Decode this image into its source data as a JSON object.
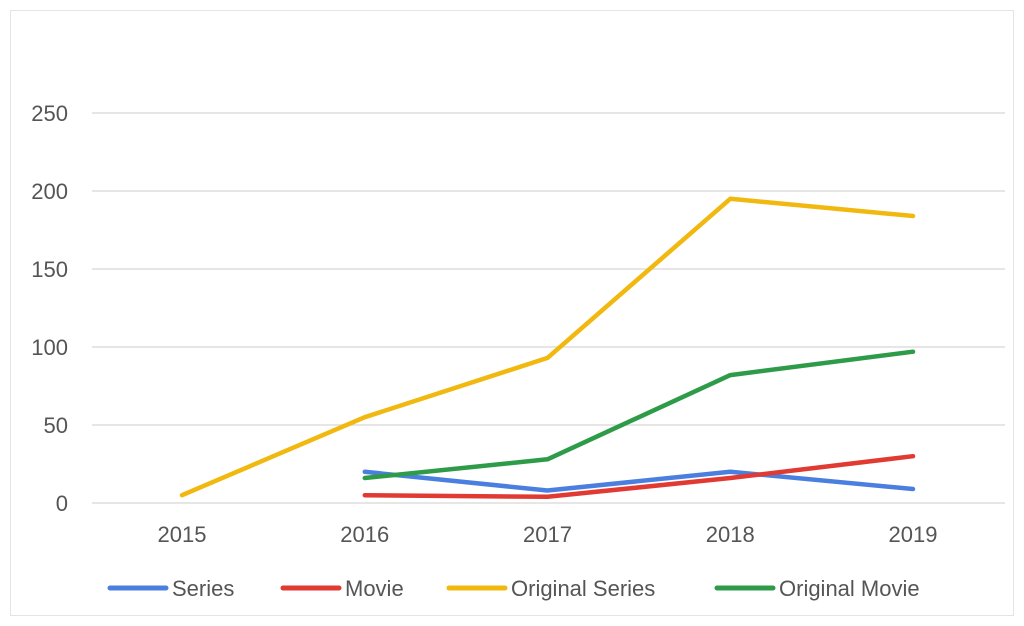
{
  "chart_data": {
    "type": "line",
    "title": "",
    "xlabel": "",
    "ylabel": "",
    "x": [
      "2015",
      "2016",
      "2017",
      "2018",
      "2019"
    ],
    "ylim": [
      0,
      250
    ],
    "yticks": [
      0,
      50,
      100,
      150,
      200,
      250
    ],
    "grid": true,
    "legend_position": "bottom",
    "series": [
      {
        "name": "Series",
        "color": "#4a7fe0",
        "values": [
          null,
          20,
          8,
          20,
          9
        ]
      },
      {
        "name": "Movie",
        "color": "#e03a32",
        "values": [
          null,
          5,
          4,
          16,
          30
        ]
      },
      {
        "name": "Original Series",
        "color": "#f1b80f",
        "values": [
          5,
          55,
          93,
          195,
          184
        ]
      },
      {
        "name": "Original Movie",
        "color": "#2e9b48",
        "values": [
          null,
          16,
          28,
          82,
          97
        ]
      }
    ]
  }
}
